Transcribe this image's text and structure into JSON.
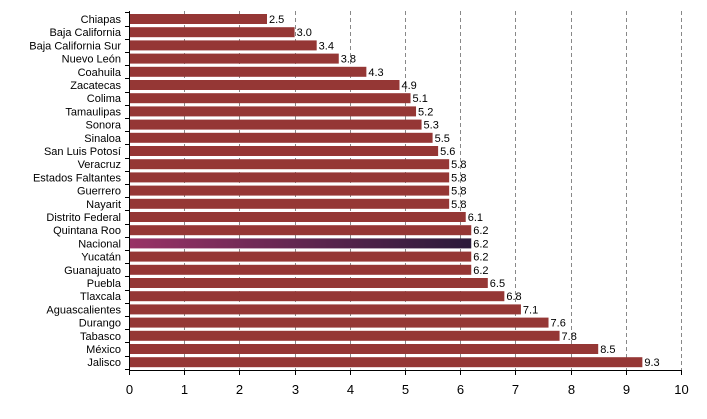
{
  "chart_data": {
    "type": "bar",
    "orientation": "horizontal",
    "categories": [
      "Chiapas",
      "Baja California",
      "Baja California Sur",
      "Nuevo León",
      "Coahuila",
      "Zacatecas",
      "Colima",
      "Tamaulipas",
      "Sonora",
      "Sinaloa",
      "San Luis Potosí",
      "Veracruz",
      "Estados Faltantes",
      "Guerrero",
      "Nayarit",
      "Distrito Federal",
      "Quintana Roo",
      "Nacional",
      "Yucatán",
      "Guanajuato",
      "Puebla",
      "Tlaxcala",
      "Aguascalientes",
      "Durango",
      "Tabasco",
      "México",
      "Jalisco"
    ],
    "values": [
      2.5,
      3.0,
      3.4,
      3.8,
      4.3,
      4.9,
      5.1,
      5.2,
      5.3,
      5.5,
      5.6,
      5.8,
      5.8,
      5.8,
      5.8,
      6.1,
      6.2,
      6.2,
      6.2,
      6.2,
      6.5,
      6.8,
      7.1,
      7.6,
      7.8,
      8.5,
      9.3
    ],
    "value_labels": [
      "2.5",
      "3.0",
      "3.4",
      "3.8",
      "4.3",
      "4.9",
      "5.1",
      "5.2",
      "5.3",
      "5.5",
      "5.6",
      "5.8",
      "5.8",
      "5.8",
      "5.8",
      "6.1",
      "6.2",
      "6.2",
      "6.2",
      "6.2",
      "6.5",
      "6.8",
      "7.1",
      "7.6",
      "7.8",
      "8.5",
      "9.3"
    ],
    "highlight_category": "Nacional",
    "xlim": [
      0,
      10
    ],
    "xticks": [
      0,
      1,
      2,
      3,
      4,
      5,
      6,
      7,
      8,
      9,
      10
    ],
    "xtick_labels": [
      "0",
      "1",
      "2",
      "3",
      "4",
      "5",
      "6",
      "7",
      "8",
      "9",
      "10"
    ],
    "grid": "vertical-dashed",
    "title": "",
    "xlabel": "",
    "ylabel": "",
    "colors": {
      "bar": "#953735",
      "highlight_start": "#993366",
      "highlight_end": "#2a1a3a",
      "grid": "#888888",
      "axis": "#000000",
      "text": "#000000"
    }
  }
}
